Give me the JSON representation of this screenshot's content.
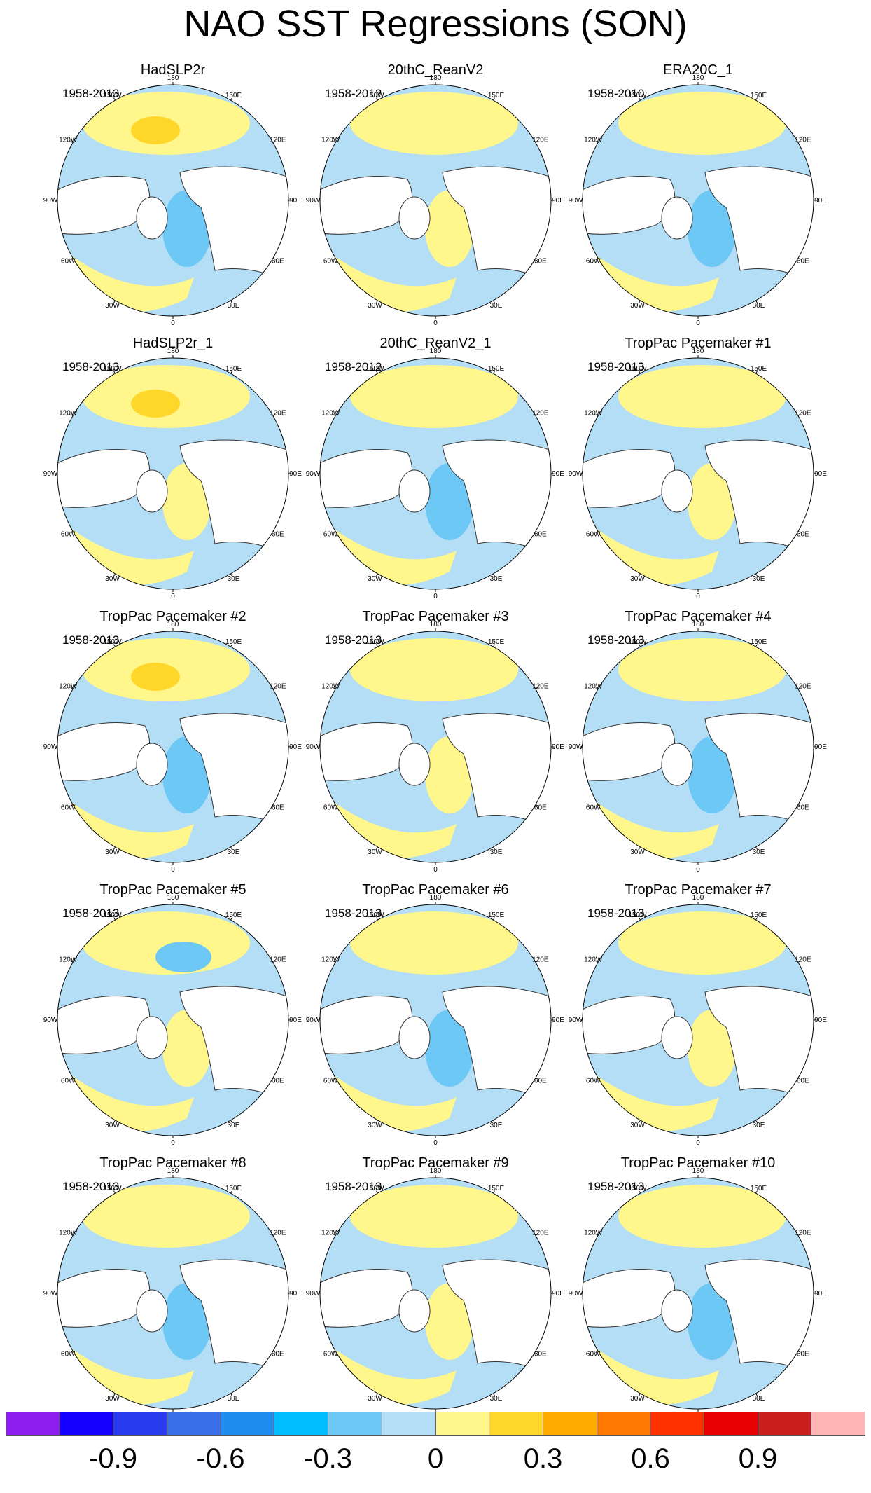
{
  "title": "NAO SST Regressions (SON)",
  "longitude_labels": [
    "180",
    "150E",
    "120E",
    "90E",
    "60E",
    "30E",
    "0",
    "30W",
    "60W",
    "90W",
    "120W",
    "150W"
  ],
  "panels": [
    {
      "title": "HadSLP2r",
      "period": "1958-2013"
    },
    {
      "title": "20thC_ReanV2",
      "period": "1958-2012"
    },
    {
      "title": "ERA20C_1",
      "period": "1958-2010"
    },
    {
      "title": "HadSLP2r_1",
      "period": "1958-2013"
    },
    {
      "title": "20thC_ReanV2_1",
      "period": "1958-2012"
    },
    {
      "title": "TropPac Pacemaker #1",
      "period": "1958-2013"
    },
    {
      "title": "TropPac Pacemaker #2",
      "period": "1958-2013"
    },
    {
      "title": "TropPac Pacemaker #3",
      "period": "1958-2013"
    },
    {
      "title": "TropPac Pacemaker #4",
      "period": "1958-2013"
    },
    {
      "title": "TropPac Pacemaker #5",
      "period": "1958-2013"
    },
    {
      "title": "TropPac Pacemaker #6",
      "period": "1958-2013"
    },
    {
      "title": "TropPac Pacemaker #7",
      "period": "1958-2013"
    },
    {
      "title": "TropPac Pacemaker #8",
      "period": "1958-2013"
    },
    {
      "title": "TropPac Pacemaker #9",
      "period": "1958-2013"
    },
    {
      "title": "TropPac Pacemaker #10",
      "period": "1958-2013"
    }
  ],
  "colorbar": {
    "colors": [
      "#8c1ef0",
      "#1400ff",
      "#2a3cf0",
      "#3a6ee8",
      "#1e8cf0",
      "#00beff",
      "#6ec8f5",
      "#b4def5",
      "#fff68c",
      "#ffd72a",
      "#ffab00",
      "#ff7800",
      "#ff3200",
      "#e60000",
      "#c81e1e",
      "#ffb4b4"
    ],
    "tick_labels": [
      "-0.9",
      "-0.6",
      "-0.3",
      "0",
      "0.3",
      "0.6",
      "0.9"
    ],
    "tick_positions": [
      2,
      4,
      6,
      8,
      10,
      12,
      14
    ]
  }
}
